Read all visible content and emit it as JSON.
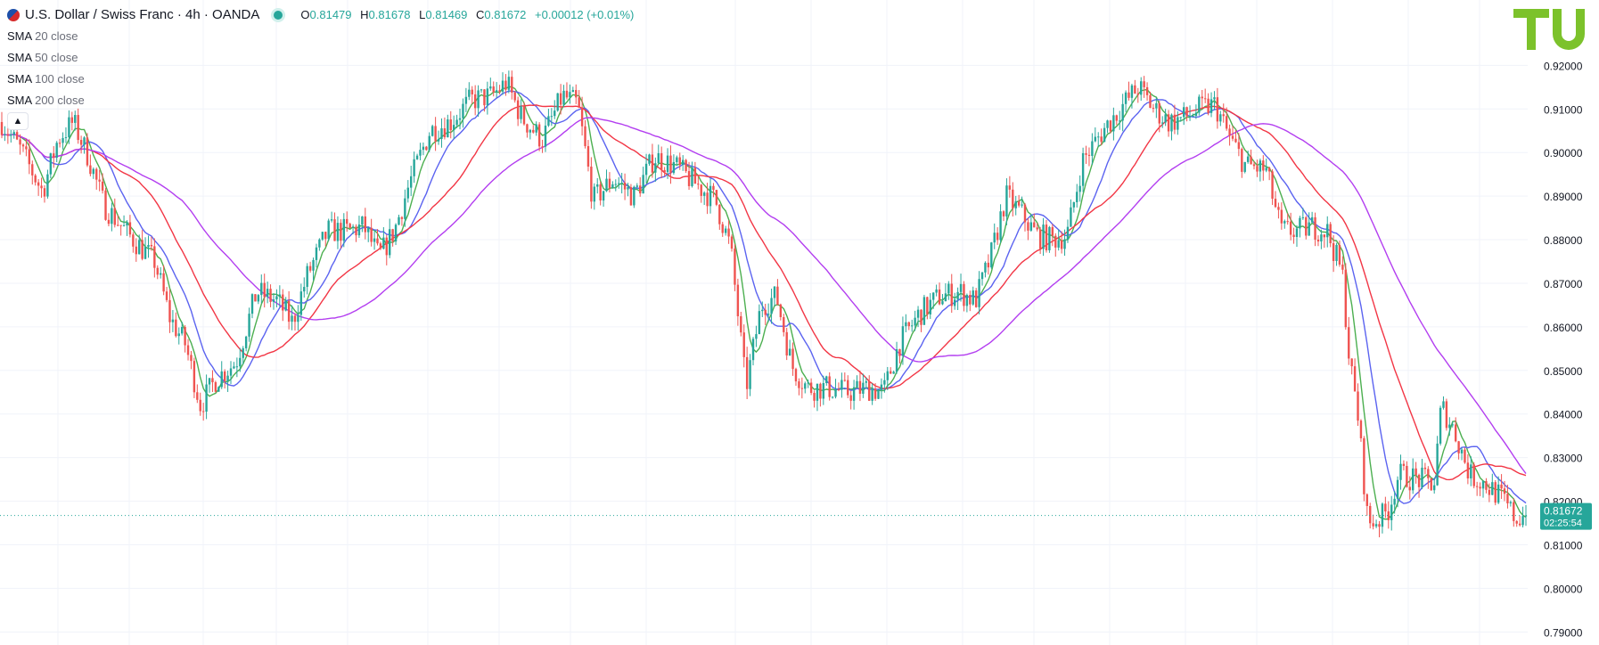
{
  "header": {
    "symbol_title": "U.S. Dollar / Swiss Franc · 4h · OANDA",
    "ohlc": [
      {
        "key": "O",
        "value": "0.81479"
      },
      {
        "key": "H",
        "value": "0.81678"
      },
      {
        "key": "L",
        "value": "0.81469"
      },
      {
        "key": "C",
        "value": "0.81672"
      }
    ],
    "change": "+0.00012 (+0.01%)",
    "indicators": [
      {
        "name": "SMA",
        "params": "20 close",
        "color": "#4caf50"
      },
      {
        "name": "SMA",
        "params": "50 close",
        "color": "#5b63f0"
      },
      {
        "name": "SMA",
        "params": "100 close",
        "color": "#f23645"
      },
      {
        "name": "SMA",
        "params": "200 close",
        "color": "#b33ef0"
      }
    ]
  },
  "price_label": {
    "value": "0.81672",
    "countdown": "02:25:54",
    "color": "#26a69a"
  },
  "logo": {
    "text": "TU",
    "color": "#7cc22b"
  },
  "colors": {
    "up": "#26a69a",
    "down": "#ef5350",
    "grid": "#f0f3fa",
    "axis_text": "#131722"
  },
  "chart_data": {
    "type": "candlestick",
    "title": "U.S. Dollar / Swiss Franc · 4h · OANDA",
    "y_ticks": [
      "0.92000",
      "0.91000",
      "0.90000",
      "0.89000",
      "0.88000",
      "0.87000",
      "0.86000",
      "0.85000",
      "0.84000",
      "0.83000",
      "0.82000",
      "0.81000",
      "0.80000",
      "0.79000"
    ],
    "ylim": [
      0.787,
      0.935
    ],
    "grid": true,
    "last_price": 0.81672,
    "price_path": [
      [
        0,
        0.907
      ],
      [
        20,
        0.9
      ],
      [
        40,
        0.891
      ],
      [
        55,
        0.903
      ],
      [
        70,
        0.907
      ],
      [
        85,
        0.899
      ],
      [
        100,
        0.888
      ],
      [
        125,
        0.881
      ],
      [
        150,
        0.875
      ],
      [
        165,
        0.862
      ],
      [
        180,
        0.856
      ],
      [
        195,
        0.842
      ],
      [
        210,
        0.848
      ],
      [
        230,
        0.852
      ],
      [
        250,
        0.868
      ],
      [
        270,
        0.866
      ],
      [
        285,
        0.861
      ],
      [
        300,
        0.872
      ],
      [
        320,
        0.882
      ],
      [
        340,
        0.882
      ],
      [
        355,
        0.883
      ],
      [
        370,
        0.876
      ],
      [
        385,
        0.882
      ],
      [
        400,
        0.893
      ],
      [
        420,
        0.905
      ],
      [
        440,
        0.907
      ],
      [
        460,
        0.912
      ],
      [
        480,
        0.913
      ],
      [
        495,
        0.916
      ],
      [
        510,
        0.908
      ],
      [
        530,
        0.903
      ],
      [
        550,
        0.913
      ],
      [
        565,
        0.911
      ],
      [
        580,
        0.889
      ],
      [
        600,
        0.894
      ],
      [
        620,
        0.89
      ],
      [
        640,
        0.899
      ],
      [
        660,
        0.897
      ],
      [
        680,
        0.893
      ],
      [
        700,
        0.889
      ],
      [
        715,
        0.878
      ],
      [
        730,
        0.846
      ],
      [
        745,
        0.865
      ],
      [
        760,
        0.867
      ],
      [
        775,
        0.851
      ],
      [
        790,
        0.846
      ],
      [
        810,
        0.846
      ],
      [
        830,
        0.845
      ],
      [
        850,
        0.846
      ],
      [
        865,
        0.845
      ],
      [
        880,
        0.856
      ],
      [
        900,
        0.863
      ],
      [
        920,
        0.867
      ],
      [
        940,
        0.868
      ],
      [
        955,
        0.866
      ],
      [
        970,
        0.876
      ],
      [
        985,
        0.89
      ],
      [
        1000,
        0.886
      ],
      [
        1015,
        0.881
      ],
      [
        1030,
        0.88
      ],
      [
        1045,
        0.881
      ],
      [
        1060,
        0.898
      ],
      [
        1080,
        0.905
      ],
      [
        1100,
        0.911
      ],
      [
        1115,
        0.915
      ],
      [
        1130,
        0.91
      ],
      [
        1145,
        0.907
      ],
      [
        1160,
        0.908
      ],
      [
        1175,
        0.91
      ],
      [
        1190,
        0.911
      ],
      [
        1205,
        0.903
      ],
      [
        1220,
        0.897
      ],
      [
        1240,
        0.896
      ],
      [
        1255,
        0.882
      ],
      [
        1270,
        0.882
      ],
      [
        1285,
        0.883
      ],
      [
        1300,
        0.882
      ],
      [
        1315,
        0.872
      ],
      [
        1322,
        0.852
      ],
      [
        1330,
        0.84
      ],
      [
        1340,
        0.815
      ],
      [
        1352,
        0.816
      ],
      [
        1360,
        0.818
      ],
      [
        1370,
        0.826
      ],
      [
        1390,
        0.825
      ],
      [
        1405,
        0.824
      ],
      [
        1412,
        0.842
      ],
      [
        1425,
        0.836
      ],
      [
        1440,
        0.826
      ],
      [
        1455,
        0.824
      ],
      [
        1470,
        0.821
      ],
      [
        1485,
        0.816
      ],
      [
        1495,
        0.817
      ]
    ],
    "x_range": [
      0,
      1495
    ]
  }
}
